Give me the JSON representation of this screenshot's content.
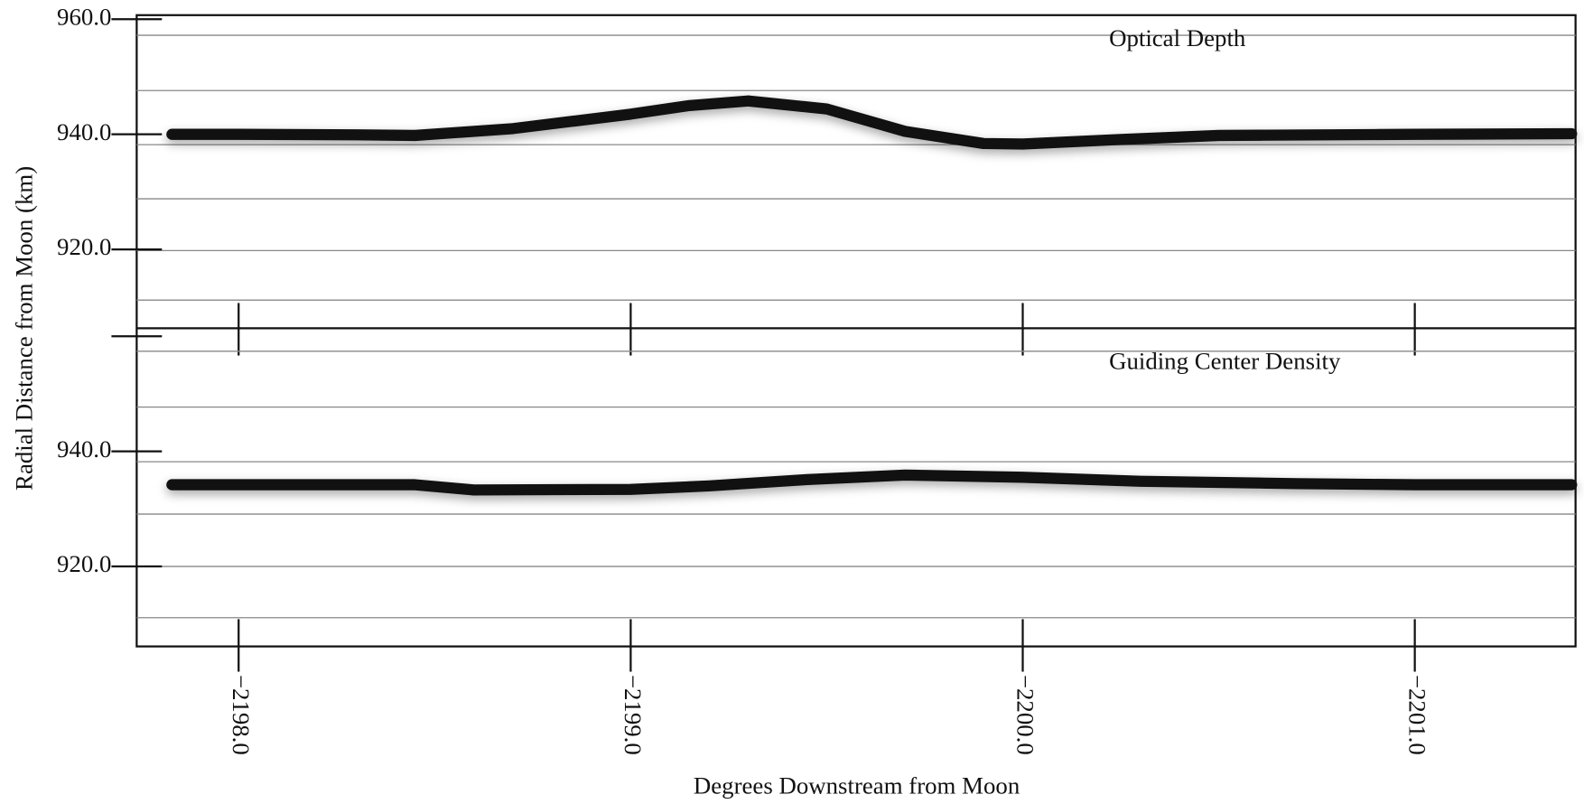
{
  "chart_data": [
    {
      "type": "line",
      "title": "Optical Depth",
      "ylabel": "Radial Distance from Moon (km)",
      "x": [
        -2197.83,
        -2198.0,
        -2198.3,
        -2198.45,
        -2198.7,
        -2199.0,
        -2199.15,
        -2199.3,
        -2199.5,
        -2199.7,
        -2199.9,
        -2200.0,
        -2200.25,
        -2200.5,
        -2201.0,
        -2201.4
      ],
      "values": [
        940,
        940,
        939.9,
        939.8,
        941,
        943.5,
        945,
        945.8,
        944.4,
        940.5,
        938.4,
        938.3,
        939.1,
        939.8,
        940,
        940.1
      ],
      "color": "#111111",
      "xlim": [
        -2197.74,
        -2201.41
      ],
      "xticks": [
        {
          "value": -2198,
          "label": null
        },
        {
          "value": -2199,
          "label": null
        },
        {
          "value": -2200,
          "label": null
        },
        {
          "value": -2201,
          "label": null
        }
      ],
      "ylim": [
        906.3,
        960.7
      ],
      "yticks": [
        {
          "value": 960,
          "label": "960.0"
        },
        {
          "value": 940,
          "label": "940.0"
        },
        {
          "value": 920,
          "label": "920.0"
        }
      ],
      "reference_lines": [
        957.2,
        947.6,
        938.2,
        928.8,
        919.8,
        911.2
      ]
    },
    {
      "type": "line",
      "title": "Guiding Center Density",
      "xlabel": "Degrees Downstream from Moon",
      "x": [
        -2197.83,
        -2198.0,
        -2198.45,
        -2198.6,
        -2199.0,
        -2199.2,
        -2199.45,
        -2199.7,
        -2200.0,
        -2200.3,
        -2200.7,
        -2201.0,
        -2201.4
      ],
      "values": [
        934.2,
        934.2,
        934.2,
        933.3,
        933.4,
        934.0,
        935.1,
        935.9,
        935.5,
        934.8,
        934.4,
        934.2,
        934.2
      ],
      "color": "#111111",
      "xlim": [
        -2197.74,
        -2201.41
      ],
      "xticks": [
        {
          "value": -2198,
          "label": "−2198.0"
        },
        {
          "value": -2199,
          "label": "−2199.0"
        },
        {
          "value": -2200,
          "label": "−2200.0"
        },
        {
          "value": -2201,
          "label": "−2201.0"
        }
      ],
      "ylim": [
        906.1,
        961.4
      ],
      "yticks": [
        {
          "value": 960,
          "label": null
        },
        {
          "value": 940,
          "label": "940.0"
        },
        {
          "value": 920,
          "label": "920.0"
        }
      ],
      "reference_lines": [
        957.4,
        947.7,
        938.2,
        929.1,
        920.0,
        911.1
      ]
    }
  ]
}
